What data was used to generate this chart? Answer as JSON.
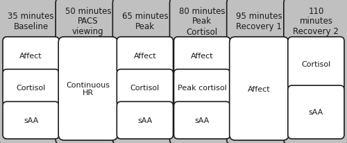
{
  "columns": [
    {
      "title": "35 minutes\nBaseline",
      "items": [
        "Affect",
        "Cortisol",
        "sAA"
      ],
      "large_item": false
    },
    {
      "title": "50 minutes\nPACS\nviewing",
      "items": [
        "Continuous\nHR"
      ],
      "large_item": true
    },
    {
      "title": "65 minutes\nPeak",
      "items": [
        "Affect",
        "Cortisol",
        "sAA"
      ],
      "large_item": false
    },
    {
      "title": "80 minutes\nPeak\nCortisol",
      "items": [
        "Affect",
        "Peak cortisol",
        "sAA"
      ],
      "large_item": false
    },
    {
      "title": "95 minutes\nRecovery 1",
      "items": [
        "Affect"
      ],
      "large_item": true
    },
    {
      "title": "110\nminutes\nRecovery 2",
      "items": [
        "Cortisol",
        "sAA"
      ],
      "large_item": false
    }
  ],
  "fig_bg_color": "#d8d8d8",
  "col_bg_color": "#c0c0c0",
  "item_bg_color": "#ffffff",
  "border_color": "#1a1a1a",
  "text_color": "#1a1a1a",
  "title_fontsize": 8.5,
  "item_fontsize": 8.0,
  "fig_width": 5.0,
  "fig_height": 2.07,
  "dpi": 100
}
